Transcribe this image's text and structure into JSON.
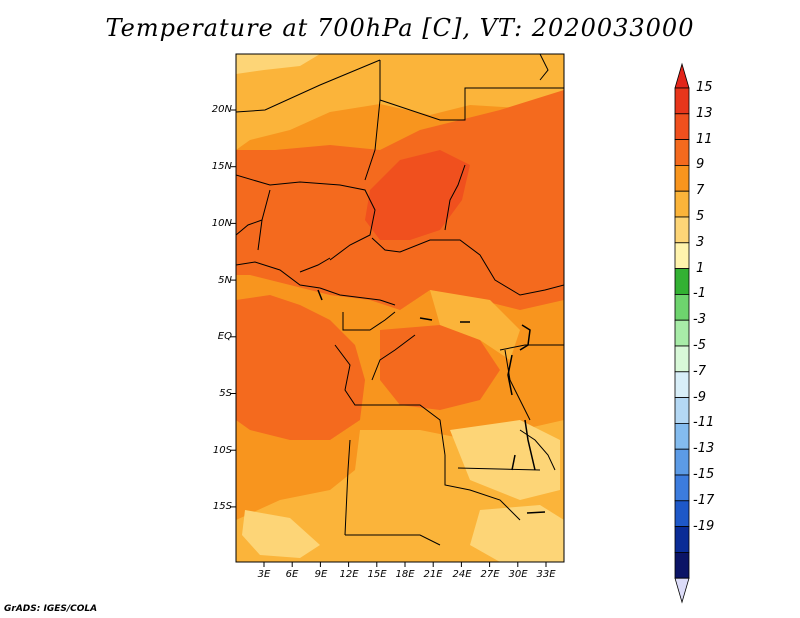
{
  "title": "Temperature at 700hPa [C], VT: 2020033000",
  "credit": "GrADS: IGES/COLA",
  "map": {
    "type": "filled contour map",
    "variable": "Temperature",
    "level": "700hPa",
    "units": "C",
    "valid_time": "2020033000",
    "lat_ticks": [
      "20N",
      "15N",
      "10N",
      "5N",
      "EQ",
      "5S",
      "10S",
      "15S"
    ],
    "lon_ticks": [
      "3E",
      "6E",
      "9E",
      "12E",
      "15E",
      "18E",
      "21E",
      "24E",
      "27E",
      "30E",
      "33E"
    ]
  },
  "colorbar": {
    "labels": [
      "15",
      "13",
      "11",
      "9",
      "7",
      "5",
      "3",
      "1",
      "-1",
      "-3",
      "-5",
      "-7",
      "-9",
      "-11",
      "-13",
      "-15",
      "-17",
      "-19"
    ],
    "colors": [
      "#e8361b",
      "#f0501e",
      "#f46a1e",
      "#f8951e",
      "#fbb43a",
      "#fdd577",
      "#fff3ad",
      "#33b133",
      "#6ed46e",
      "#a8eca8",
      "#d8f8d8",
      "#d8eef8",
      "#b4d8f4",
      "#84bcef",
      "#5c9be6",
      "#3c7cde",
      "#1e58c8",
      "#0a2c96",
      "#0b1466"
    ],
    "top_arrow_color": "#e3251a",
    "bottom_arrow_color": "#dcdcf8"
  }
}
